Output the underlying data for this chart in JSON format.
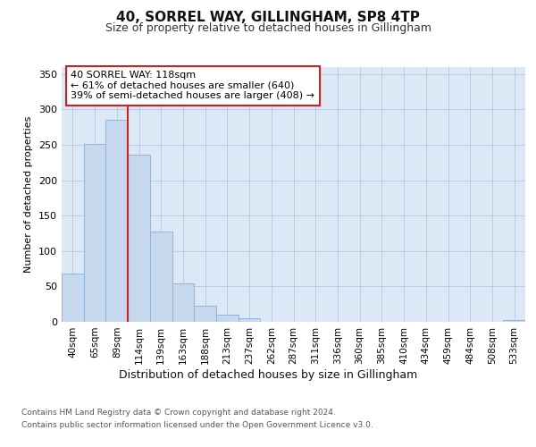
{
  "title": "40, SORREL WAY, GILLINGHAM, SP8 4TP",
  "subtitle": "Size of property relative to detached houses in Gillingham",
  "xlabel": "Distribution of detached houses by size in Gillingham",
  "ylabel": "Number of detached properties",
  "categories": [
    "40sqm",
    "65sqm",
    "89sqm",
    "114sqm",
    "139sqm",
    "163sqm",
    "188sqm",
    "213sqm",
    "237sqm",
    "262sqm",
    "287sqm",
    "311sqm",
    "336sqm",
    "360sqm",
    "385sqm",
    "410sqm",
    "434sqm",
    "459sqm",
    "484sqm",
    "508sqm",
    "533sqm"
  ],
  "values": [
    68,
    251,
    286,
    236,
    128,
    54,
    23,
    10,
    5,
    0,
    0,
    0,
    0,
    0,
    0,
    0,
    0,
    0,
    0,
    0,
    3
  ],
  "bar_color": "#c5d8ee",
  "bar_edge_color": "#8ab0d0",
  "vline_x": 2.5,
  "annotation_line0": "40 SORREL WAY: 118sqm",
  "annotation_line1": "← 61% of detached houses are smaller (640)",
  "annotation_line2": "39% of semi-detached houses are larger (408) →",
  "annotation_box_fc": "#ffffff",
  "annotation_box_ec": "#cc2222",
  "vline_color": "#cc2222",
  "ylim": [
    0,
    360
  ],
  "yticks": [
    0,
    50,
    100,
    150,
    200,
    250,
    300,
    350
  ],
  "footer_line1": "Contains HM Land Registry data © Crown copyright and database right 2024.",
  "footer_line2": "Contains public sector information licensed under the Open Government Licence v3.0.",
  "fig_bg_color": "#ffffff",
  "plot_bg_color": "#dce8f5"
}
